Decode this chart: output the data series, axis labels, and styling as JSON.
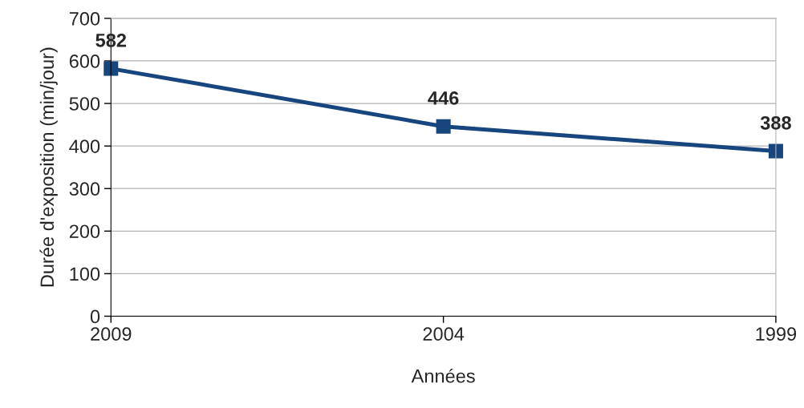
{
  "chart_data": {
    "type": "line",
    "xlabel": "Années",
    "ylabel": "Durée d'exposition (min/jour)",
    "categories": [
      "2009",
      "2004",
      "1999"
    ],
    "series": [
      {
        "color": "#17457d",
        "values": [
          582,
          446,
          388
        ]
      }
    ],
    "ylim": [
      0,
      700
    ],
    "yticks": [
      0,
      100,
      200,
      300,
      400,
      500,
      600,
      700
    ],
    "grid": "y",
    "marker": "square",
    "line_style": "solid",
    "data_labels": true,
    "legend": false
  }
}
